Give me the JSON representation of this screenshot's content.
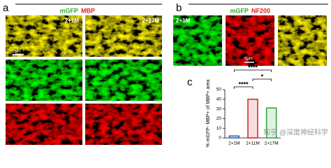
{
  "panel_a": {
    "label": "a",
    "header": [
      "mGFP",
      "MBP"
    ],
    "tags": [
      "2+1M",
      "2+17M"
    ],
    "scale": "5μm"
  },
  "panel_b": {
    "label": "b",
    "header": [
      "mGFP",
      "NF200"
    ],
    "tag": "2+1M",
    "scale": "5μm"
  },
  "panel_c": {
    "label": "c"
  },
  "chart_data": {
    "type": "bar",
    "y_label": "% mGFP- MBP+ of MBP+ area",
    "categories": [
      "2+1M",
      "2+11M",
      "2+17M"
    ],
    "values": [
      2,
      40,
      31
    ],
    "colors": [
      "#2f5fb3",
      "#d42020",
      "#2e9e3a"
    ],
    "ylim": [
      0,
      50
    ],
    "yticks": [
      0,
      10,
      20,
      30,
      40,
      50
    ],
    "significance": [
      "****",
      "****",
      "*"
    ]
  },
  "watermark": "知乎 @深度神经科学"
}
